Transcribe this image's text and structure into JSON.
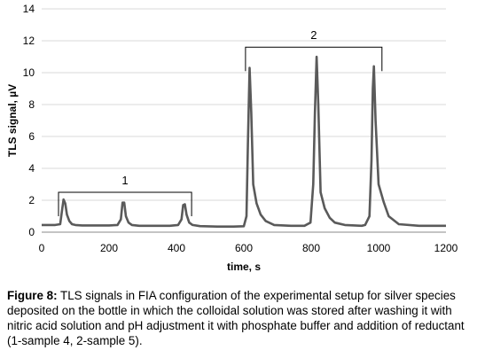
{
  "chart_data": {
    "type": "line",
    "xlabel": "time, s",
    "ylabel": "TLS signal, µV",
    "xlim": [
      0,
      1200
    ],
    "ylim": [
      0,
      14
    ],
    "xticks": [
      0,
      200,
      400,
      600,
      800,
      1000,
      1200
    ],
    "yticks": [
      0,
      2,
      4,
      6,
      8,
      10,
      12,
      14
    ],
    "grid": true,
    "line_color": "#5a5a5a",
    "series": [
      {
        "x": [
          0,
          40,
          55,
          60,
          65,
          70,
          75,
          82,
          90,
          100,
          120,
          160,
          200,
          225,
          235,
          240,
          245,
          250,
          258,
          268,
          290,
          340,
          380,
          405,
          415,
          420,
          425,
          430,
          438,
          448,
          470,
          520,
          570,
          600,
          608,
          612,
          617,
          622,
          628,
          638,
          650,
          665,
          690,
          740,
          780,
          798,
          806,
          811,
          816,
          821,
          828,
          840,
          855,
          870,
          900,
          950,
          960,
          973,
          979,
          983,
          986,
          991,
          1000,
          1015,
          1030,
          1060,
          1120,
          1200
        ],
        "y": [
          0.45,
          0.45,
          0.5,
          1.3,
          2.05,
          1.8,
          1.1,
          0.7,
          0.5,
          0.45,
          0.42,
          0.42,
          0.42,
          0.45,
          0.8,
          1.85,
          1.85,
          1.0,
          0.6,
          0.45,
          0.4,
          0.4,
          0.4,
          0.45,
          0.8,
          1.7,
          1.75,
          1.1,
          0.6,
          0.45,
          0.38,
          0.35,
          0.35,
          0.37,
          1.0,
          5.5,
          10.3,
          7.5,
          3.0,
          1.8,
          1.1,
          0.7,
          0.45,
          0.4,
          0.4,
          0.6,
          3.0,
          7.5,
          11.0,
          8.0,
          2.5,
          1.5,
          0.9,
          0.6,
          0.45,
          0.4,
          0.45,
          1.0,
          4.5,
          9.0,
          10.4,
          7.0,
          3.0,
          1.9,
          1.0,
          0.5,
          0.4,
          0.4
        ]
      }
    ],
    "annotations": [
      {
        "label": "1",
        "from": 50,
        "to": 445,
        "y": 2.5
      },
      {
        "label": "2",
        "from": 605,
        "to": 1010,
        "y": 11.6
      }
    ]
  },
  "caption": {
    "label": "Figure 8:",
    "text": " TLS signals in FIA configuration of the experimental setup for silver species deposited on the bottle in which the colloidal solution was stored after washing it with nitric acid solution and pH adjustment it with phosphate buffer and addition of reductant (1-sample 4, 2-sample 5)."
  }
}
